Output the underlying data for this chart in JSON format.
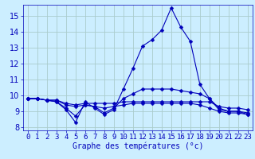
{
  "xlabel": "Graphe des températures (°c)",
  "background_color": "#cceeff",
  "grid_color": "#aacccc",
  "line_color": "#0000bb",
  "xlim": [
    -0.5,
    23.5
  ],
  "ylim": [
    7.8,
    15.7
  ],
  "xticks": [
    0,
    1,
    2,
    3,
    4,
    5,
    6,
    7,
    8,
    9,
    10,
    11,
    12,
    13,
    14,
    15,
    16,
    17,
    18,
    19,
    20,
    21,
    22,
    23
  ],
  "yticks": [
    8,
    9,
    10,
    11,
    12,
    13,
    14,
    15
  ],
  "series1": [
    9.8,
    9.8,
    9.7,
    9.6,
    9.1,
    8.3,
    9.6,
    9.2,
    8.8,
    9.1,
    10.4,
    11.7,
    13.1,
    13.5,
    14.1,
    15.5,
    14.3,
    13.4,
    10.7,
    9.8,
    9.1,
    9.0,
    9.0,
    8.8
  ],
  "series2": [
    9.8,
    9.8,
    9.7,
    9.7,
    9.5,
    9.4,
    9.5,
    9.5,
    9.5,
    9.5,
    9.6,
    9.6,
    9.6,
    9.6,
    9.6,
    9.6,
    9.6,
    9.6,
    9.6,
    9.6,
    9.3,
    9.2,
    9.2,
    9.1
  ],
  "series3": [
    9.8,
    9.8,
    9.7,
    9.7,
    9.4,
    9.3,
    9.4,
    9.3,
    9.2,
    9.3,
    9.4,
    9.5,
    9.5,
    9.5,
    9.5,
    9.5,
    9.5,
    9.5,
    9.4,
    9.2,
    9.0,
    8.9,
    8.9,
    8.8
  ],
  "series4": [
    9.8,
    9.8,
    9.7,
    9.6,
    9.2,
    8.7,
    9.4,
    9.3,
    8.9,
    9.2,
    9.8,
    10.1,
    10.4,
    10.4,
    10.4,
    10.4,
    10.3,
    10.2,
    10.1,
    9.8,
    9.2,
    9.0,
    9.0,
    8.9
  ],
  "xlabel_fontsize": 7,
  "tick_fontsize": 6.5
}
